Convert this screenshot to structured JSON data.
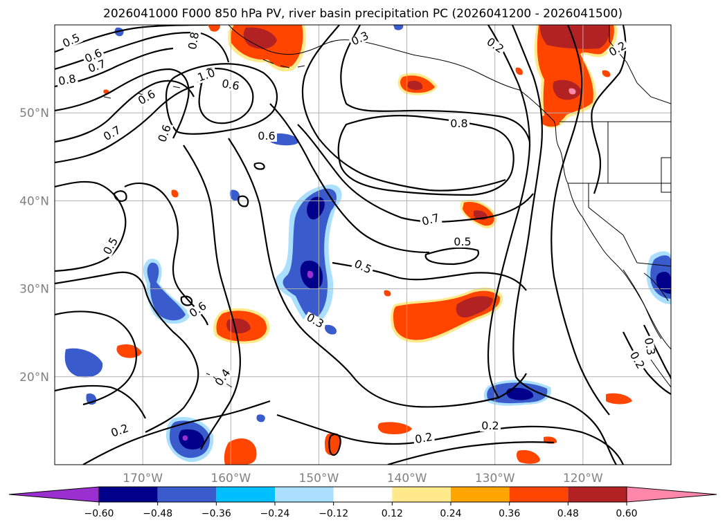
{
  "title": "2026041000 F000 850 hPa PV, river basin precipitation PC (2026041200 - 2026041500)",
  "map": {
    "lon_range": [
      -180,
      -110
    ],
    "lat_range": [
      10,
      60
    ],
    "lon_ticks": [
      {
        "value": -170,
        "label": "170°W"
      },
      {
        "value": -160,
        "label": "160°W"
      },
      {
        "value": -150,
        "label": "150°W"
      },
      {
        "value": -140,
        "label": "140°W"
      },
      {
        "value": -130,
        "label": "130°W"
      },
      {
        "value": -120,
        "label": "120°W"
      }
    ],
    "lat_ticks": [
      {
        "value": 20,
        "label": "20°N"
      },
      {
        "value": 30,
        "label": "30°N"
      },
      {
        "value": 40,
        "label": "40°N"
      },
      {
        "value": 50,
        "label": "50°N"
      }
    ],
    "gridlines": true,
    "contour_labels": [
      "0.5",
      "0.6",
      "0.7",
      "0.8",
      "0.6",
      "0.8",
      "1.0",
      "0.6",
      "0.5",
      "0.7",
      "0.6",
      "0.6",
      "0.4",
      "0.3",
      "0.2",
      "0.8",
      "0.2",
      "0.7",
      "0.5",
      "0.5",
      "0.5",
      "0.3",
      "0.6",
      "0.4",
      "0.2",
      "0.2",
      "0.2",
      "0.3",
      "0.2"
    ]
  },
  "colorbar": {
    "levels": [
      -0.6,
      -0.48,
      -0.36,
      -0.24,
      -0.12,
      0.12,
      0.24,
      0.36,
      0.48,
      0.6
    ],
    "tick_labels": [
      "−0.60",
      "−0.48",
      "−0.36",
      "−0.24",
      "−0.12",
      "0.12",
      "0.24",
      "0.36",
      "0.48",
      "0.60"
    ],
    "colors": [
      "#9b30d0",
      "#00008b",
      "#3a5bcc",
      "#00bfff",
      "#aadfff",
      "#ffffff",
      "#ffe98a",
      "#ffa500",
      "#ff4500",
      "#b22222",
      "#ff88aa"
    ],
    "extend": "both"
  },
  "fill_colors": {
    "neg_light": "#aadfff",
    "neg_mid": "#3a5bcc",
    "neg_dark": "#00008b",
    "neg_extreme": "#9b30d0",
    "pos_light": "#ffe98a",
    "pos_mid": "#ffa500",
    "pos_strong": "#ff4500",
    "pos_dark": "#b22222",
    "pos_extreme": "#ff88aa"
  }
}
